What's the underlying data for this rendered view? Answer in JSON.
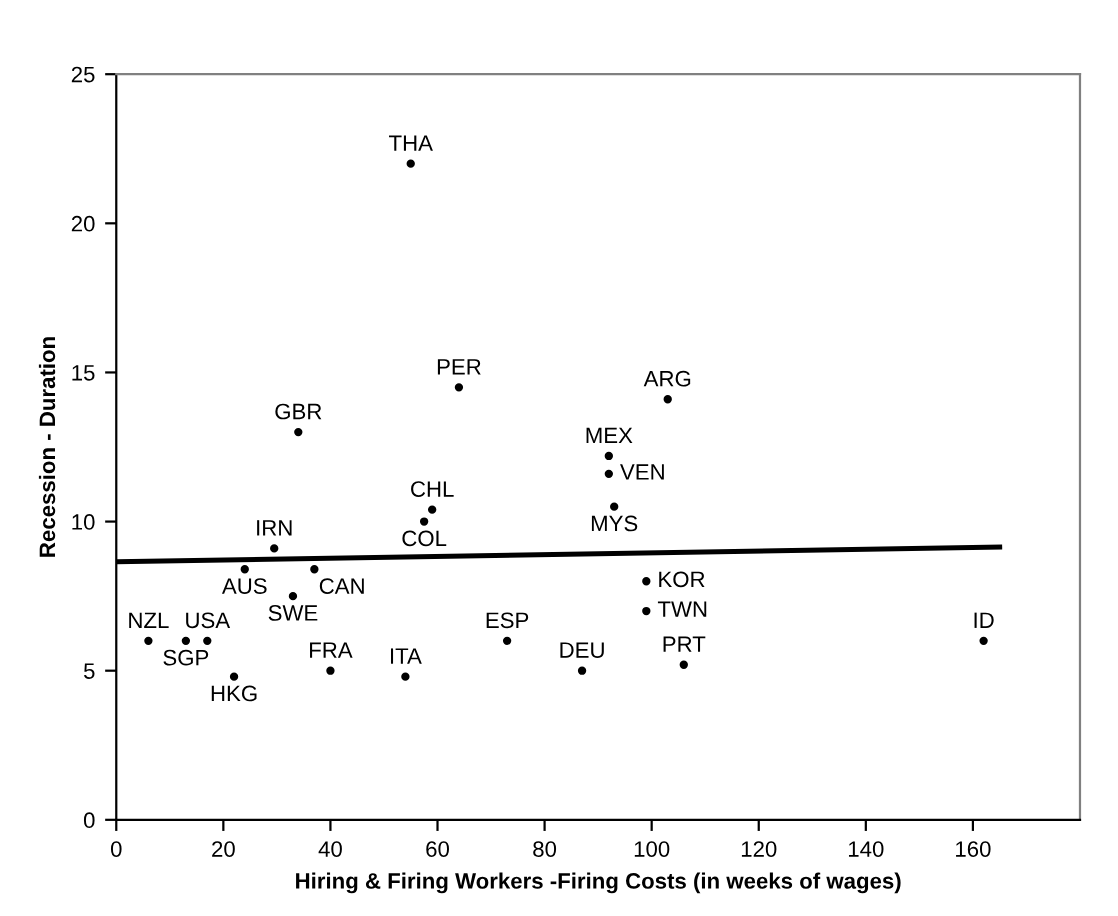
{
  "chart_data": {
    "type": "scatter",
    "xlabel": "Hiring & Firing Workers -Firing Costs (in weeks of wages)",
    "ylabel": "Recession - Duration",
    "xlim": [
      0,
      180
    ],
    "xticks": [
      0,
      20,
      40,
      60,
      80,
      100,
      120,
      140,
      160
    ],
    "ylim": [
      0,
      25
    ],
    "yticks": [
      0,
      5,
      10,
      15,
      20,
      25
    ],
    "grid": false,
    "legend": false,
    "series": [
      {
        "marker": "circle",
        "color": "#000000",
        "x": [
          55,
          64,
          34,
          103,
          92,
          92,
          93,
          59,
          57.5,
          29.5,
          24,
          37,
          33,
          6,
          13,
          17,
          22,
          40,
          54,
          73,
          87,
          106,
          99,
          99,
          162
        ],
        "values": [
          22,
          14.5,
          13,
          14.1,
          12.2,
          11.6,
          10.5,
          10.4,
          10,
          9.1,
          8.4,
          8.4,
          7.5,
          6,
          6,
          6,
          4.8,
          5,
          4.8,
          6,
          5,
          5.2,
          8,
          7,
          6
        ],
        "value_labels": [
          "THA",
          "PER",
          "GBR",
          "ARG",
          "MEX",
          "VEN",
          "MYS",
          "CHL",
          "COL",
          "IRN",
          "AUS",
          "CAN",
          "SWE",
          "NZL",
          "SGP",
          "USA",
          "HKG",
          "FRA",
          "ITA",
          "ESP",
          "DEU",
          "PRT",
          "KOR",
          "TWN",
          "ID"
        ]
      },
      {
        "type": "line",
        "marker": "none",
        "line_style": "solid",
        "color": "#000000",
        "x": [
          0,
          165
        ],
        "values": [
          8.65,
          9.15
        ]
      }
    ]
  }
}
